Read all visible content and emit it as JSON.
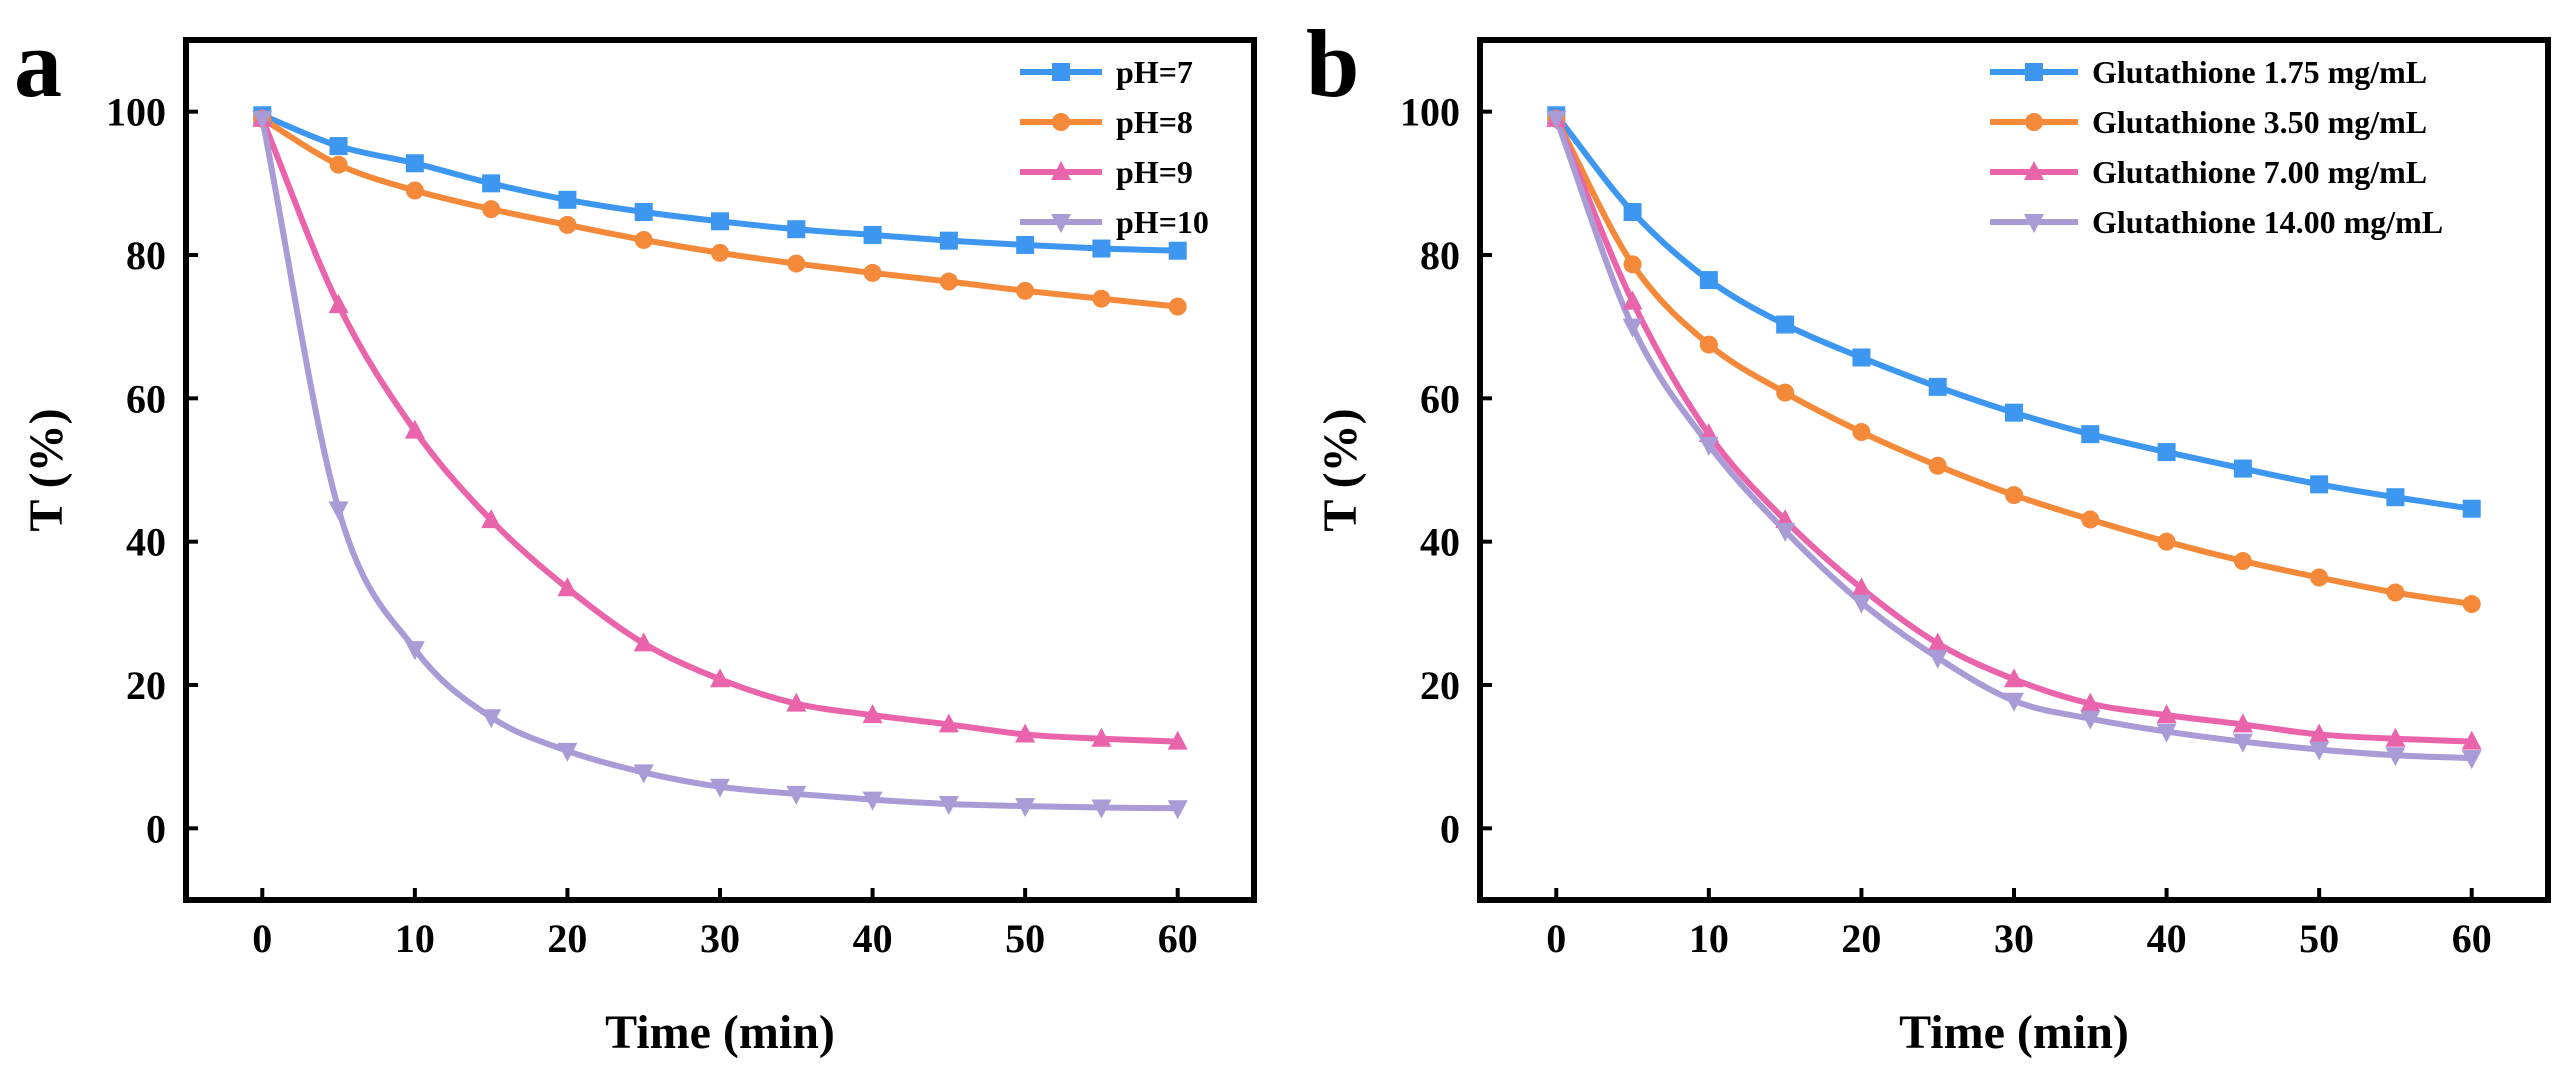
{
  "figure": {
    "panel_labels": [
      "a",
      "b"
    ]
  },
  "chart_data": [
    {
      "panel": "a",
      "type": "line",
      "title": "",
      "xlabel": "Time (min)",
      "ylabel": "T (%)",
      "xlim": [
        -5,
        65
      ],
      "ylim": [
        -10,
        110
      ],
      "xticks": [
        0,
        10,
        20,
        30,
        40,
        50,
        60
      ],
      "yticks": [
        0,
        20,
        40,
        60,
        80,
        100
      ],
      "grid": false,
      "legend_position": "top-right",
      "x": [
        0,
        5,
        10,
        15,
        20,
        25,
        30,
        35,
        40,
        45,
        50,
        55,
        60
      ],
      "series": [
        {
          "name": "pH=7",
          "color": "#3d97f0",
          "marker": "square",
          "values": [
            99.5,
            95.2,
            92.8,
            90.0,
            87.7,
            86.0,
            84.7,
            83.6,
            82.8,
            82.0,
            81.4,
            80.9,
            80.6
          ]
        },
        {
          "name": "pH=8",
          "color": "#f5893a",
          "marker": "circle",
          "values": [
            99.0,
            92.6,
            89.0,
            86.4,
            84.2,
            82.1,
            80.3,
            78.8,
            77.5,
            76.3,
            75.0,
            73.9,
            72.8
          ]
        },
        {
          "name": "pH=9",
          "color": "#ea64ab",
          "marker": "triangle-up",
          "values": [
            99.0,
            73.0,
            55.5,
            43.0,
            33.5,
            25.8,
            20.8,
            17.4,
            15.8,
            14.5,
            13.1,
            12.5,
            12.1
          ]
        },
        {
          "name": "pH=10",
          "color": "#a99bd6",
          "marker": "triangle-down",
          "values": [
            99.0,
            44.5,
            25.0,
            15.5,
            10.8,
            7.8,
            5.8,
            4.8,
            4.0,
            3.4,
            3.1,
            2.9,
            2.8
          ]
        }
      ]
    },
    {
      "panel": "b",
      "type": "line",
      "title": "",
      "xlabel": "Time (min)",
      "ylabel": "T (%)",
      "xlim": [
        -5,
        65
      ],
      "ylim": [
        -10,
        110
      ],
      "xticks": [
        0,
        10,
        20,
        30,
        40,
        50,
        60
      ],
      "yticks": [
        0,
        20,
        40,
        60,
        80,
        100
      ],
      "grid": false,
      "legend_position": "top-right",
      "x": [
        0,
        5,
        10,
        15,
        20,
        25,
        30,
        35,
        40,
        45,
        50,
        55,
        60
      ],
      "series": [
        {
          "name": "Glutathione 1.75 mg/mL",
          "color": "#3d97f0",
          "marker": "square",
          "values": [
            99.5,
            86.0,
            76.5,
            70.3,
            65.7,
            61.6,
            58.0,
            55.0,
            52.5,
            50.2,
            48.0,
            46.2,
            44.6
          ]
        },
        {
          "name": "Glutathione 3.50 mg/mL",
          "color": "#f5893a",
          "marker": "circle",
          "values": [
            99.0,
            78.7,
            67.5,
            60.8,
            55.3,
            50.6,
            46.5,
            43.1,
            40.0,
            37.3,
            35.0,
            32.9,
            31.3
          ]
        },
        {
          "name": "Glutathione 7.00 mg/mL",
          "color": "#ea64ab",
          "marker": "triangle-up",
          "values": [
            99.0,
            73.5,
            55.0,
            43.0,
            33.5,
            25.8,
            20.8,
            17.4,
            15.8,
            14.5,
            13.1,
            12.5,
            12.1
          ]
        },
        {
          "name": "Glutathione 14.00 mg/mL",
          "color": "#a99bd6",
          "marker": "triangle-down",
          "values": [
            99.0,
            70.0,
            53.5,
            41.5,
            31.5,
            23.8,
            17.8,
            15.3,
            13.5,
            12.1,
            11.0,
            10.2,
            9.8
          ]
        }
      ]
    }
  ]
}
